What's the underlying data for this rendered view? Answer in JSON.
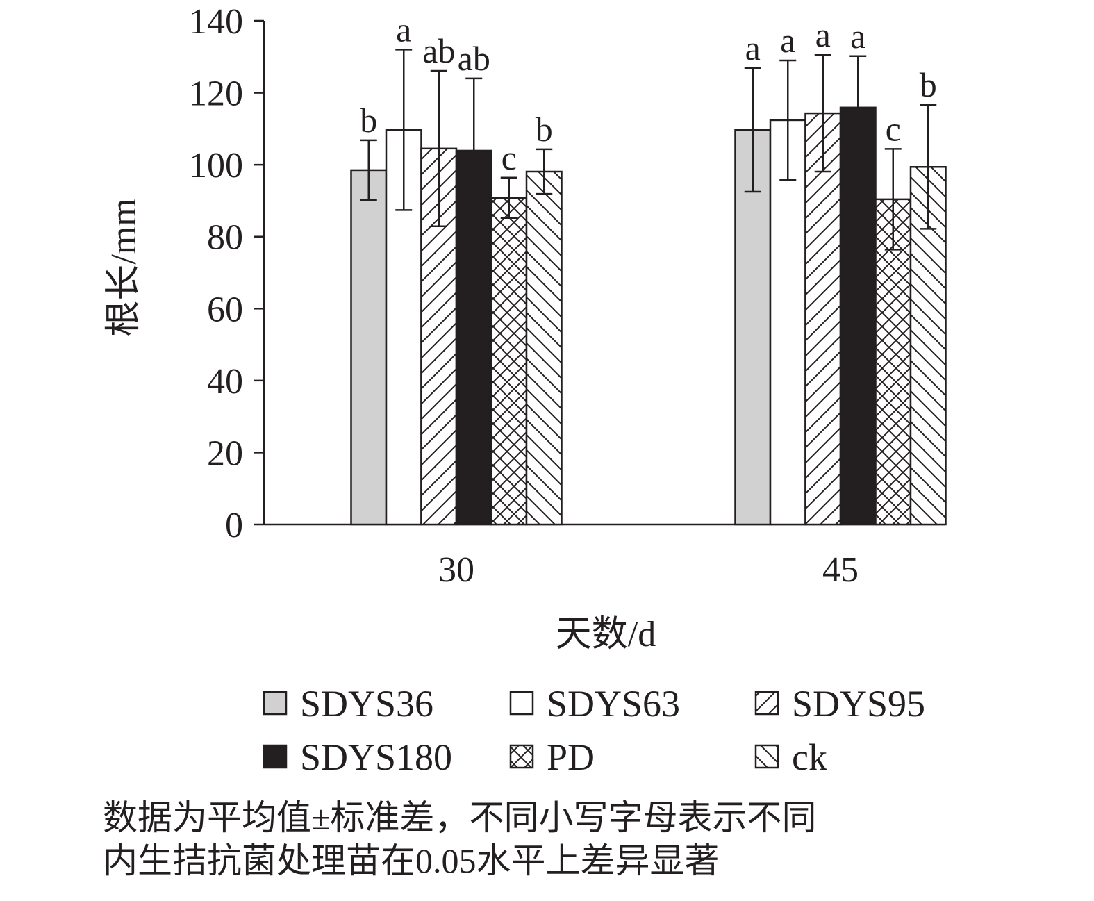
{
  "chart_data": {
    "type": "bar",
    "xlabel": "天数/d",
    "ylabel": "根长/mm",
    "ylim": [
      0,
      140
    ],
    "yticks": [
      0,
      20,
      40,
      60,
      80,
      100,
      120,
      140
    ],
    "categories": [
      "30",
      "45"
    ],
    "grid": false,
    "legend_position": "bottom",
    "series": [
      {
        "name": "SDYS36",
        "fill": "#d1d1d1",
        "pattern": "solid",
        "values": [
          98.5,
          109.7
        ],
        "errors": [
          8.3,
          17.2
        ],
        "letters": [
          "b",
          "a"
        ]
      },
      {
        "name": "SDYS63",
        "fill": "#ffffff",
        "pattern": "solid",
        "values": [
          109.7,
          112.4
        ],
        "errors": [
          22.3,
          16.6
        ],
        "letters": [
          "a",
          "a"
        ]
      },
      {
        "name": "SDYS95",
        "fill": "#ffffff",
        "pattern": "forward-diagonal",
        "values": [
          104.5,
          114.3
        ],
        "errors": [
          21.6,
          16.2
        ],
        "letters": [
          "ab",
          "a"
        ]
      },
      {
        "name": "SDYS180",
        "fill": "#231f20",
        "pattern": "solid",
        "values": [
          103.9,
          115.9
        ],
        "errors": [
          20.1,
          14.3
        ],
        "letters": [
          "ab",
          "a"
        ]
      },
      {
        "name": "PD",
        "fill": "#ffffff",
        "pattern": "crosshatch",
        "values": [
          90.8,
          90.4
        ],
        "errors": [
          5.6,
          14.0
        ],
        "letters": [
          "c",
          "c"
        ]
      },
      {
        "name": "ck",
        "fill": "#ffffff",
        "pattern": "backward-diagonal",
        "values": [
          98.1,
          99.4
        ],
        "errors": [
          6.2,
          17.2
        ],
        "letters": [
          "b",
          "b"
        ]
      }
    ]
  },
  "caption": {
    "line1": "数据为平均值±标准差，不同小写字母表示不同",
    "line2": "内生拮抗菌处理苗在0.05水平上差异显著"
  }
}
